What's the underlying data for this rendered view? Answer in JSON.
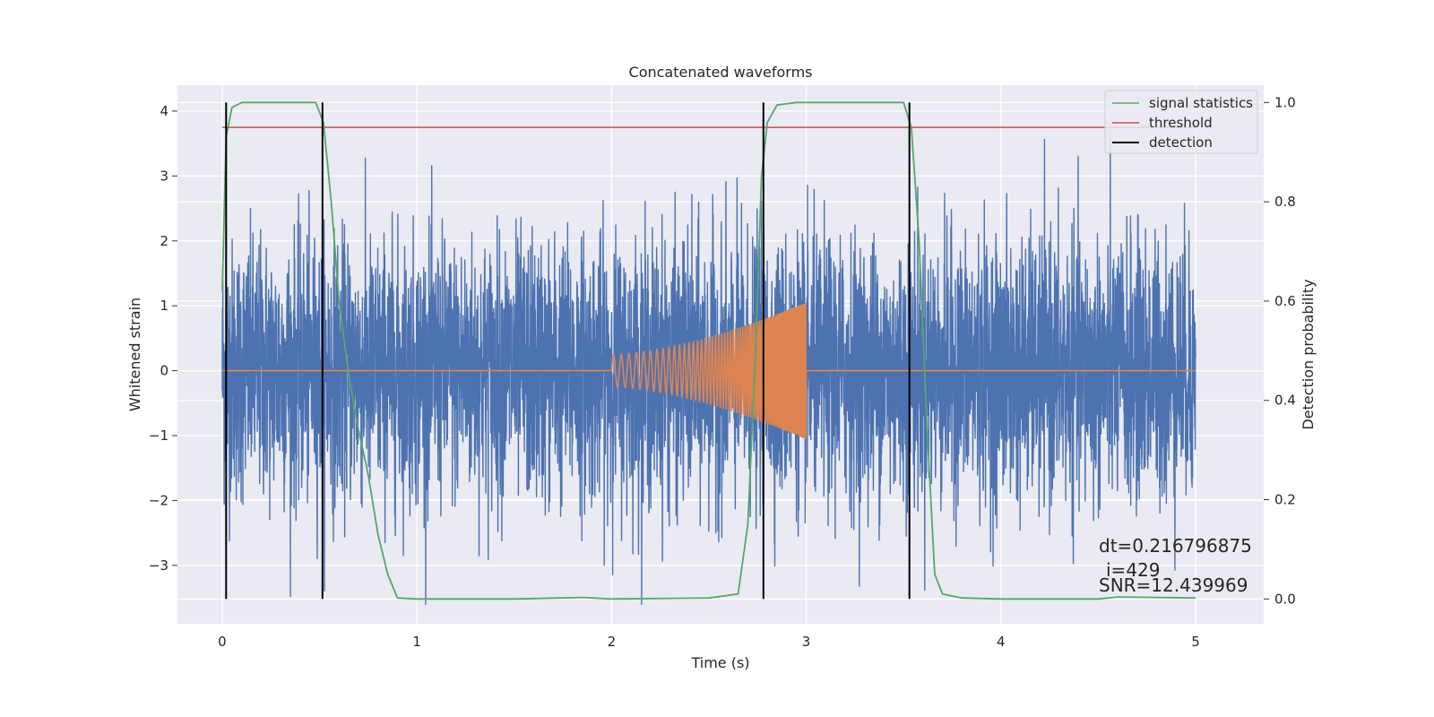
{
  "chart_data": {
    "type": "line",
    "title": "Concatenated waveforms",
    "xlabel": "Time (s)",
    "ylabel_left": "Whitened strain",
    "ylabel_right": "Detection probability",
    "xlim": [
      -0.23,
      5.35
    ],
    "ylim_left": [
      -3.9,
      4.4
    ],
    "ylim_right": [
      -0.05,
      1.035
    ],
    "x_ticks": [
      0,
      1,
      2,
      3,
      4,
      5
    ],
    "y_ticks_left": [
      -3,
      -2,
      -1,
      0,
      1,
      2,
      3,
      4
    ],
    "y_ticks_left_labels": [
      "−3",
      "−2",
      "−1",
      "0",
      "1",
      "2",
      "3",
      "4"
    ],
    "y_ticks_right": [
      0.0,
      0.2,
      0.4,
      0.6,
      0.8,
      1.0
    ],
    "y_ticks_right_labels": [
      "0.0",
      "0.2",
      "0.4",
      "0.6",
      "0.8",
      "1.0"
    ],
    "grid": true,
    "legend_position": "top-right",
    "series": [
      {
        "name": "",
        "axis": "left",
        "kind": "whitened strain noise",
        "x_range": [
          0,
          5
        ],
        "approx_sigma": 1.0,
        "approx_range": [
          -3.6,
          4.0
        ],
        "color": "#4c72b0"
      },
      {
        "name": "",
        "axis": "left",
        "kind": "chirp",
        "x_start": 2.0,
        "x_end": 3.0,
        "amp_start": 0.25,
        "amp_end": 1.05,
        "flat_value": 0,
        "color": "#dd8452"
      },
      {
        "name": "signal statistics",
        "axis": "right",
        "color": "#55a868",
        "x": [
          0.0,
          0.02,
          0.05,
          0.1,
          0.3,
          0.48,
          0.52,
          0.56,
          0.6,
          0.65,
          0.7,
          0.75,
          0.8,
          0.85,
          0.9,
          1.0,
          1.5,
          1.85,
          2.0,
          2.5,
          2.65,
          2.7,
          2.74,
          2.77,
          2.8,
          2.85,
          2.95,
          3.2,
          3.5,
          3.54,
          3.58,
          3.62,
          3.66,
          3.7,
          3.8,
          4.0,
          4.5,
          4.6,
          5.0
        ],
        "y": [
          0.62,
          0.93,
          0.99,
          1.0,
          1.0,
          1.0,
          0.96,
          0.8,
          0.6,
          0.45,
          0.34,
          0.25,
          0.13,
          0.05,
          0.002,
          0.0,
          0.0,
          0.003,
          0.0,
          0.002,
          0.01,
          0.15,
          0.5,
          0.85,
          0.96,
          0.995,
          1.0,
          1.0,
          1.0,
          0.95,
          0.72,
          0.35,
          0.05,
          0.01,
          0.002,
          0.0,
          0.0,
          0.004,
          0.002
        ]
      },
      {
        "name": "threshold",
        "axis": "right",
        "color": "#c44e52",
        "x": [
          0,
          5
        ],
        "y": [
          0.95,
          0.95
        ]
      },
      {
        "name": "detection",
        "axis": "right",
        "color": "#000000",
        "x_positions": [
          0.02,
          0.515,
          2.78,
          3.53
        ],
        "y_range": [
          0.0,
          1.0
        ]
      }
    ],
    "annotations": [
      "dt=0.216796875",
      "i=429",
      "SNR=12.439969"
    ]
  }
}
